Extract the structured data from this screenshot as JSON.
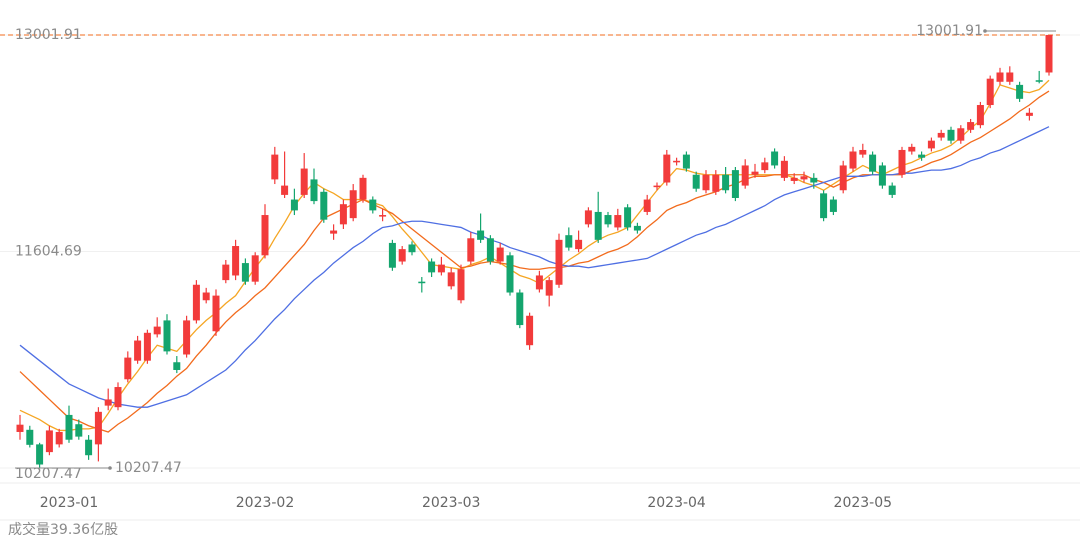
{
  "chart_data": {
    "type": "candlestick",
    "categories": [
      null,
      null,
      null,
      null,
      null,
      "2023-01",
      null,
      null,
      null,
      null,
      null,
      null,
      null,
      null,
      null,
      null,
      null,
      null,
      null,
      null,
      null,
      null,
      null,
      null,
      null,
      "2023-02",
      null,
      null,
      null,
      null,
      null,
      null,
      null,
      null,
      null,
      null,
      null,
      null,
      null,
      null,
      null,
      null,
      null,
      null,
      "2023-03",
      null,
      null,
      null,
      null,
      null,
      null,
      null,
      null,
      null,
      null,
      null,
      null,
      null,
      null,
      null,
      null,
      null,
      null,
      null,
      null,
      null,
      null,
      "2023-04",
      null,
      null,
      null,
      null,
      null,
      null,
      null,
      null,
      null,
      null,
      null,
      null,
      null,
      null,
      null,
      null,
      null,
      null,
      "2023-05",
      null,
      null,
      null,
      null,
      null,
      null,
      null,
      null,
      null,
      null,
      null,
      null,
      null,
      null,
      null,
      null,
      null,
      null,
      null
    ],
    "open": [
      10440,
      10454,
      10360,
      10310,
      10360,
      10550,
      10490,
      10390,
      10360,
      10610,
      10600,
      10780,
      10900,
      10900,
      11070,
      11160,
      10890,
      10940,
      11160,
      11290,
      11090,
      11420,
      11450,
      11530,
      11410,
      11580,
      12070,
      11970,
      11940,
      11970,
      12070,
      11990,
      11720,
      11780,
      11820,
      11940,
      11940,
      11830,
      11660,
      11540,
      11650,
      11410,
      11540,
      11470,
      11380,
      11290,
      11540,
      11740,
      11690,
      11540,
      11580,
      11340,
      11000,
      11360,
      11320,
      11390,
      11710,
      11620,
      11780,
      11860,
      11840,
      11760,
      11890,
      11770,
      11860,
      12020,
      12050,
      12180,
      12230,
      12100,
      12000,
      11990,
      12100,
      12130,
      12030,
      12100,
      12130,
      12250,
      12080,
      12060,
      12070,
      12080,
      11980,
      11940,
      12000,
      12140,
      12230,
      12230,
      12160,
      12030,
      12100,
      12250,
      12230,
      12270,
      12340,
      12390,
      12320,
      12390,
      12420,
      12550,
      12700,
      12700,
      12680,
      12480,
      12710,
      12760
    ],
    "high": [
      10550,
      10480,
      10370,
      10480,
      10460,
      10610,
      10520,
      10420,
      10600,
      10720,
      10760,
      10960,
      11060,
      11100,
      11180,
      11200,
      10930,
      11190,
      11420,
      11370,
      11360,
      11550,
      11680,
      11560,
      11600,
      11910,
      12280,
      12250,
      12010,
      12240,
      12140,
      12010,
      11780,
      11940,
      12040,
      12100,
      11960,
      11880,
      11680,
      11640,
      11670,
      11440,
      11560,
      11570,
      11500,
      11520,
      11730,
      11850,
      11710,
      11660,
      11600,
      11360,
      11210,
      11480,
      11440,
      11720,
      11760,
      11740,
      11890,
      11990,
      11860,
      11880,
      11910,
      11790,
      11970,
      12050,
      12260,
      12210,
      12250,
      12120,
      12130,
      12130,
      12150,
      12150,
      12200,
      12170,
      12210,
      12270,
      12220,
      12110,
      12120,
      12110,
      12000,
      11960,
      12190,
      12280,
      12300,
      12250,
      12180,
      12050,
      12280,
      12300,
      12250,
      12340,
      12390,
      12410,
      12420,
      12460,
      12570,
      12740,
      12790,
      12800,
      12700,
      12530,
      12770,
      13001.91
    ],
    "low": [
      10390,
      10340,
      10207.47,
      10290,
      10340,
      10370,
      10390,
      10260,
      10250,
      10580,
      10580,
      10760,
      10880,
      10880,
      11050,
      10940,
      10820,
      10920,
      11140,
      11270,
      11060,
      11400,
      11420,
      11390,
      11390,
      11560,
      12040,
      11950,
      11840,
      11950,
      11910,
      11790,
      11680,
      11750,
      11800,
      11920,
      11850,
      11800,
      11480,
      11520,
      11580,
      11340,
      11440,
      11450,
      11360,
      11270,
      11520,
      11660,
      11520,
      11520,
      11320,
      11110,
      10970,
      11340,
      11250,
      11370,
      11610,
      11600,
      11760,
      11660,
      11760,
      11740,
      11740,
      11720,
      11840,
      12000,
      12030,
      12160,
      12120,
      11990,
      11980,
      11970,
      11980,
      11930,
      12010,
      12080,
      12110,
      12140,
      12060,
      12040,
      12050,
      12010,
      11800,
      11840,
      11980,
      12120,
      12210,
      12100,
      12010,
      11950,
      12080,
      12230,
      12190,
      12250,
      12320,
      12300,
      12300,
      12370,
      12400,
      12530,
      12680,
      12680,
      12570,
      12450,
      12690,
      12740
    ],
    "close": [
      10487,
      10357,
      10230,
      10450,
      10440,
      10390,
      10410,
      10290,
      10570,
      10650,
      10730,
      10920,
      11030,
      11080,
      11120,
      10960,
      10840,
      11160,
      11390,
      11340,
      11320,
      11520,
      11640,
      11410,
      11580,
      11840,
      12230,
      12030,
      11870,
      12140,
      11930,
      11810,
      11740,
      11910,
      12000,
      12080,
      11870,
      11840,
      11500,
      11620,
      11600,
      11400,
      11470,
      11520,
      11470,
      11490,
      11690,
      11680,
      11540,
      11630,
      11340,
      11130,
      11190,
      11450,
      11420,
      11680,
      11630,
      11680,
      11870,
      11680,
      11780,
      11840,
      11760,
      11740,
      11940,
      12030,
      12230,
      12190,
      12140,
      12010,
      12100,
      12100,
      12000,
      11950,
      12160,
      12120,
      12180,
      12160,
      12190,
      12080,
      12090,
      12050,
      11820,
      11860,
      12160,
      12250,
      12260,
      12120,
      12030,
      11970,
      12260,
      12280,
      12210,
      12320,
      12370,
      12320,
      12400,
      12440,
      12550,
      12720,
      12760,
      12760,
      12590,
      12500,
      12700,
      13001.91
    ],
    "up_color": "#f23b3b",
    "down_color": "#14a56e",
    "series": [
      {
        "color": "#f5a623",
        "values": [
          10580,
          10550,
          10520,
          10480,
          10450,
          10450,
          10460,
          10460,
          10470,
          10560,
          10660,
          10750,
          10830,
          10920,
          11000,
          10980,
          10960,
          11030,
          11100,
          11160,
          11210,
          11270,
          11320,
          11410,
          11500,
          11580,
          11690,
          11790,
          11900,
          11980,
          12050,
          12010,
          11980,
          11940,
          11940,
          11940,
          11920,
          11900,
          11830,
          11750,
          11680,
          11600,
          11520,
          11510,
          11500,
          11490,
          11520,
          11540,
          11570,
          11530,
          11490,
          11450,
          11430,
          11400,
          11450,
          11500,
          11550,
          11590,
          11640,
          11680,
          11710,
          11730,
          11760,
          11840,
          11920,
          12000,
          12070,
          12140,
          12130,
          12110,
          12100,
          12100,
          12100,
          12100,
          12100,
          12100,
          12100,
          12100,
          12100,
          12080,
          12050,
          12030,
          12000,
          12040,
          12080,
          12120,
          12160,
          12130,
          12100,
          12130,
          12160,
          12180,
          12210,
          12240,
          12260,
          12290,
          12340,
          12400,
          12450,
          12560,
          12680,
          12660,
          12640,
          12630,
          12650,
          12710
        ]
      },
      {
        "color": "#f26b1d",
        "values": [
          10830,
          10770,
          10710,
          10650,
          10590,
          10530,
          10510,
          10480,
          10460,
          10440,
          10490,
          10530,
          10580,
          10630,
          10690,
          10740,
          10800,
          10850,
          10930,
          11000,
          11080,
          11150,
          11210,
          11260,
          11320,
          11370,
          11440,
          11510,
          11580,
          11650,
          11740,
          11820,
          11850,
          11880,
          11910,
          11940,
          11910,
          11880,
          11850,
          11800,
          11750,
          11700,
          11650,
          11600,
          11550,
          11500,
          11510,
          11530,
          11540,
          11530,
          11520,
          11500,
          11490,
          11490,
          11500,
          11500,
          11510,
          11530,
          11540,
          11570,
          11600,
          11620,
          11650,
          11700,
          11760,
          11810,
          11870,
          11900,
          11920,
          11950,
          11970,
          11990,
          12020,
          12040,
          12070,
          12090,
          12090,
          12100,
          12100,
          12100,
          12100,
          12070,
          12050,
          12020,
          12050,
          12080,
          12100,
          12100,
          12100,
          12100,
          12100,
          12130,
          12150,
          12180,
          12200,
          12230,
          12270,
          12310,
          12340,
          12380,
          12420,
          12460,
          12510,
          12550,
          12600,
          12640
        ]
      },
      {
        "color": "#4f6fe3",
        "values": [
          11000,
          10950,
          10900,
          10850,
          10800,
          10750,
          10720,
          10690,
          10660,
          10640,
          10620,
          10610,
          10600,
          10600,
          10620,
          10640,
          10660,
          10680,
          10720,
          10760,
          10800,
          10840,
          10900,
          10970,
          11030,
          11100,
          11170,
          11230,
          11300,
          11360,
          11420,
          11470,
          11530,
          11580,
          11630,
          11670,
          11720,
          11760,
          11770,
          11790,
          11800,
          11800,
          11790,
          11780,
          11770,
          11760,
          11730,
          11710,
          11680,
          11660,
          11630,
          11610,
          11590,
          11570,
          11540,
          11520,
          11510,
          11510,
          11500,
          11510,
          11520,
          11530,
          11540,
          11550,
          11560,
          11590,
          11620,
          11650,
          11680,
          11710,
          11730,
          11760,
          11780,
          11810,
          11840,
          11870,
          11900,
          11940,
          11970,
          11990,
          12010,
          12030,
          12050,
          12070,
          12090,
          12090,
          12090,
          12100,
          12100,
          12100,
          12110,
          12110,
          12120,
          12130,
          12130,
          12140,
          12160,
          12190,
          12210,
          12240,
          12260,
          12290,
          12320,
          12350,
          12380,
          12410
        ]
      }
    ],
    "ylim": [
      10207.47,
      13001.91
    ],
    "yticks": [
      10207.47,
      11604.69,
      13001.91
    ],
    "grid": true,
    "last_price": 13001.91,
    "last_price_color": "#f26b1d",
    "max_annotation": 13001.91,
    "min_annotation": 10207.47,
    "volume_label": "成交量39.36亿股"
  }
}
